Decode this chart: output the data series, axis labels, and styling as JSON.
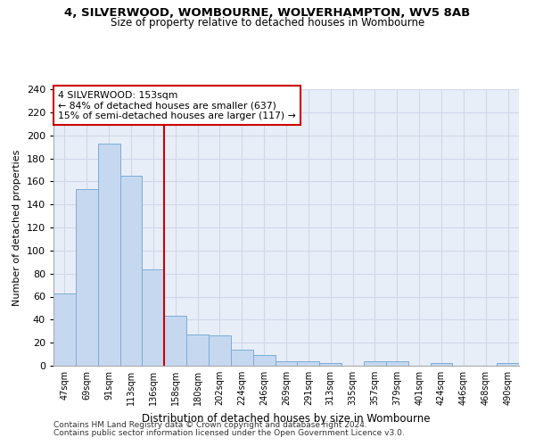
{
  "title_line1": "4, SILVERWOOD, WOMBOURNE, WOLVERHAMPTON, WV5 8AB",
  "title_line2": "Size of property relative to detached houses in Wombourne",
  "xlabel": "Distribution of detached houses by size in Wombourne",
  "ylabel": "Number of detached properties",
  "bin_labels": [
    "47sqm",
    "69sqm",
    "91sqm",
    "113sqm",
    "136sqm",
    "158sqm",
    "180sqm",
    "202sqm",
    "224sqm",
    "246sqm",
    "269sqm",
    "291sqm",
    "313sqm",
    "335sqm",
    "357sqm",
    "379sqm",
    "401sqm",
    "424sqm",
    "446sqm",
    "468sqm",
    "490sqm"
  ],
  "bar_heights": [
    63,
    153,
    193,
    165,
    84,
    43,
    27,
    26,
    14,
    9,
    4,
    4,
    2,
    0,
    4,
    4,
    0,
    2,
    0,
    0,
    2
  ],
  "bar_color": "#c5d8f0",
  "bar_edge_color": "#7aadd4",
  "vline_color": "#cc0000",
  "annotation_text": "4 SILVERWOOD: 153sqm\n← 84% of detached houses are smaller (637)\n15% of semi-detached houses are larger (117) →",
  "annotation_box_color": "white",
  "annotation_box_edge_color": "#cc0000",
  "footer_line1": "Contains HM Land Registry data © Crown copyright and database right 2024.",
  "footer_line2": "Contains public sector information licensed under the Open Government Licence v3.0.",
  "ylim": [
    0,
    240
  ],
  "yticks": [
    0,
    20,
    40,
    60,
    80,
    100,
    120,
    140,
    160,
    180,
    200,
    220,
    240
  ],
  "grid_color": "#d0d8e8",
  "background_color": "#e8eef8",
  "vline_bin_index": 4,
  "bar_width": 1.0
}
